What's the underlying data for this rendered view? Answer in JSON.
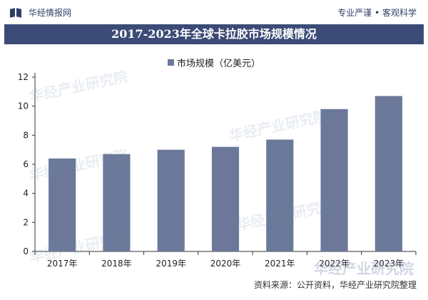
{
  "header": {
    "brand_name": "华经情报网",
    "slogan": "专业严谨 • 客观科学"
  },
  "watermark_text": "华经产业研究院",
  "source_text": "资料来源：公开资料，华经产业研究院整理",
  "chart_data": {
    "type": "bar",
    "title": "2017-2023年全球卡拉胶市场规模情况",
    "categories": [
      "2017年",
      "2018年",
      "2019年",
      "2020年",
      "2021年",
      "2022年",
      "2023年"
    ],
    "series": [
      {
        "name": "市场规模（亿美元）",
        "values": [
          6.4,
          6.7,
          7.0,
          7.2,
          7.7,
          9.8,
          10.7
        ],
        "color": "#6b7899"
      }
    ],
    "ylim": [
      0,
      12
    ],
    "yticks": [
      0,
      2,
      4,
      6,
      8,
      10,
      12
    ],
    "grid": false,
    "legend": "top-center"
  }
}
